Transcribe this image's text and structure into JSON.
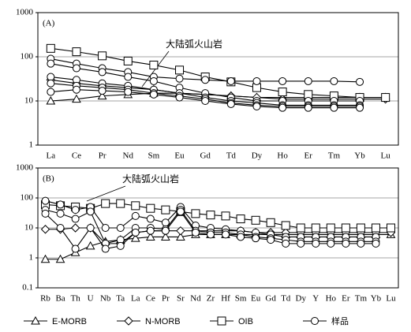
{
  "chart_data": [
    {
      "type": "line",
      "panel_label": "(A)",
      "annotation": "大陆弧火山岩",
      "log_y": true,
      "grid": true,
      "categories": [
        "La",
        "Ce",
        "Pr",
        "Nd",
        "Sm",
        "Eu",
        "Gd",
        "Td",
        "Dy",
        "Ho",
        "Er",
        "Tm",
        "Yb",
        "Lu"
      ],
      "ylim": [
        1,
        1000
      ],
      "yticks": [
        1,
        10,
        100,
        1000
      ],
      "series": [
        {
          "name": "E-MORB",
          "marker": "triangle",
          "color": "#000000",
          "values": [
            10,
            11,
            13,
            14,
            15,
            15,
            14,
            13,
            12,
            12,
            12,
            12,
            12,
            12
          ]
        },
        {
          "name": "N-MORB",
          "marker": "diamond",
          "color": "#000000",
          "values": [
            30,
            25,
            22,
            20,
            18,
            15,
            14,
            13,
            12,
            11,
            11,
            11,
            11,
            11
          ]
        },
        {
          "name": "OIB",
          "marker": "square",
          "color": "#000000",
          "values": [
            155,
            130,
            105,
            80,
            65,
            50,
            35,
            27,
            20,
            16,
            14,
            13,
            12,
            12
          ]
        },
        {
          "name": "样品",
          "marker": "circle",
          "color": "#000000",
          "values": [
            90,
            70,
            55,
            45,
            35,
            32,
            30,
            28,
            28,
            28,
            28,
            28,
            27,
            null
          ]
        },
        {
          "name": "样品",
          "marker": "circle",
          "color": "#000000",
          "values": [
            70,
            55,
            45,
            35,
            28,
            20,
            15,
            12,
            10,
            10,
            10,
            10,
            10,
            null
          ]
        },
        {
          "name": "样品",
          "marker": "circle",
          "color": "#000000",
          "values": [
            35,
            30,
            25,
            22,
            18,
            15,
            12,
            10,
            9,
            8,
            8,
            8,
            8,
            null
          ]
        },
        {
          "name": "样品",
          "marker": "circle",
          "color": "#000000",
          "values": [
            25,
            22,
            20,
            18,
            15,
            13,
            11,
            9,
            8,
            7.5,
            7.5,
            7.5,
            7.5,
            null
          ]
        },
        {
          "name": "样品",
          "marker": "circle",
          "color": "#000000",
          "values": [
            16,
            18,
            17,
            16,
            14,
            12,
            10,
            8.5,
            7.5,
            7,
            7,
            7,
            7,
            null
          ]
        }
      ]
    },
    {
      "type": "line",
      "panel_label": "(B)",
      "annotation": "大陆弧火山岩",
      "log_y": true,
      "grid": true,
      "categories": [
        "Rb",
        "Ba",
        "Th",
        "U",
        "Nb",
        "Ta",
        "La",
        "Ce",
        "Pr",
        "Sr",
        "Nd",
        "Zr",
        "Hf",
        "Sm",
        "Eu",
        "Gd",
        "Td",
        "Dy",
        "Y",
        "Ho",
        "Er",
        "Tm",
        "Yb",
        "Lu"
      ],
      "ylim": [
        0.1,
        1000
      ],
      "yticks": [
        0.1,
        1,
        10,
        100,
        1000
      ],
      "series": [
        {
          "name": "E-MORB",
          "marker": "triangle",
          "color": "#000000",
          "values": [
            0.9,
            0.9,
            1.5,
            2.5,
            3.5,
            4,
            4.5,
            5,
            5,
            5,
            6,
            6,
            6,
            6,
            6,
            6,
            6,
            6,
            6,
            6,
            6,
            6,
            6,
            6
          ]
        },
        {
          "name": "N-MORB",
          "marker": "diamond",
          "color": "#000000",
          "values": [
            9,
            9,
            10,
            10,
            3,
            3,
            7,
            8,
            8,
            8,
            8,
            8,
            8,
            8,
            7,
            7,
            7,
            7,
            7,
            7,
            7,
            7,
            7,
            7
          ]
        },
        {
          "name": "OIB",
          "marker": "square",
          "color": "#000000",
          "values": [
            60,
            55,
            50,
            45,
            65,
            65,
            55,
            45,
            40,
            35,
            30,
            27,
            25,
            20,
            18,
            15,
            12,
            10,
            10,
            10,
            10,
            10,
            10,
            10
          ]
        },
        {
          "name": "样品",
          "marker": "circle",
          "color": "#000000",
          "values": [
            80,
            60,
            40,
            50,
            10,
            10,
            25,
            20,
            15,
            50,
            12,
            10,
            9,
            8,
            7,
            6,
            5,
            5,
            5,
            5,
            5,
            5,
            5,
            null
          ]
        },
        {
          "name": "样品",
          "marker": "circle",
          "color": "#000000",
          "values": [
            40,
            30,
            20,
            35,
            3,
            4,
            10,
            10,
            9,
            40,
            8,
            7,
            7,
            6,
            5,
            4.5,
            4,
            3.5,
            3.5,
            3.5,
            3.5,
            3.5,
            3.5,
            null
          ]
        },
        {
          "name": "样品",
          "marker": "circle",
          "color": "#000000",
          "values": [
            30,
            10,
            2,
            10,
            2,
            2.5,
            7,
            8,
            8,
            35,
            7,
            6,
            6,
            5,
            4.5,
            4,
            3,
            3,
            3,
            3,
            3,
            3,
            3,
            null
          ]
        }
      ]
    }
  ]
}
